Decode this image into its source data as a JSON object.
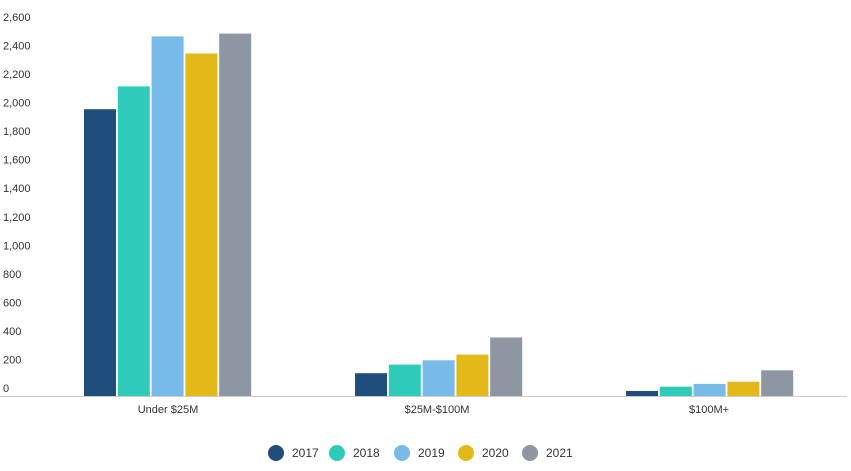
{
  "chart_data": {
    "type": "bar",
    "categories": [
      "Under $25M",
      "$25M-$100M",
      "$100M+"
    ],
    "series": [
      {
        "name": "2017",
        "color": "#1f4e7d",
        "values": [
          2010,
          160,
          35
        ]
      },
      {
        "name": "2018",
        "color": "#2ecbb8",
        "values": [
          2170,
          220,
          65
        ]
      },
      {
        "name": "2019",
        "color": "#78bbe8",
        "values": [
          2520,
          250,
          85
        ]
      },
      {
        "name": "2020",
        "color": "#e3b919",
        "values": [
          2400,
          290,
          100
        ]
      },
      {
        "name": "2021",
        "color": "#8d96a2",
        "values": [
          2540,
          410,
          180
        ]
      }
    ],
    "y_ticks": [
      "0",
      "200",
      "400",
      "600",
      "800",
      "1,000",
      "1,200",
      "1,400",
      "1,600",
      "1,800",
      "2,000",
      "2,200",
      "2,400",
      "2,600"
    ],
    "ylim": [
      0,
      2600
    ],
    "grid": false,
    "legend_position": "bottom"
  }
}
